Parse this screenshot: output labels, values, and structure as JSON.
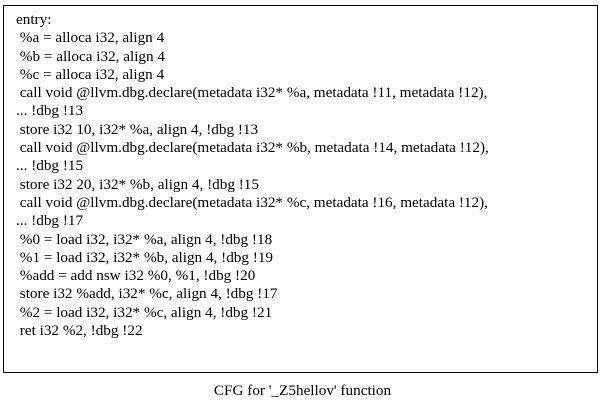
{
  "graph": {
    "caption": "CFG for '_Z5hellov' function",
    "node": {
      "lines": [
        "entry:",
        " %a = alloca i32, align 4",
        " %b = alloca i32, align 4",
        " %c = alloca i32, align 4",
        " call void @llvm.dbg.declare(metadata i32* %a, metadata !11, metadata !12),",
        "... !dbg !13",
        " store i32 10, i32* %a, align 4, !dbg !13",
        " call void @llvm.dbg.declare(metadata i32* %b, metadata !14, metadata !12),",
        "... !dbg !15",
        " store i32 20, i32* %b, align 4, !dbg !15",
        " call void @llvm.dbg.declare(metadata i32* %c, metadata !16, metadata !12),",
        "... !dbg !17",
        " %0 = load i32, i32* %a, align 4, !dbg !18",
        " %1 = load i32, i32* %b, align 4, !dbg !19",
        " %add = add nsw i32 %0, %1, !dbg !20",
        " store i32 %add, i32* %c, align 4, !dbg !17",
        " %2 = load i32, i32* %c, align 4, !dbg !21",
        " ret i32 %2, !dbg !22"
      ]
    }
  }
}
